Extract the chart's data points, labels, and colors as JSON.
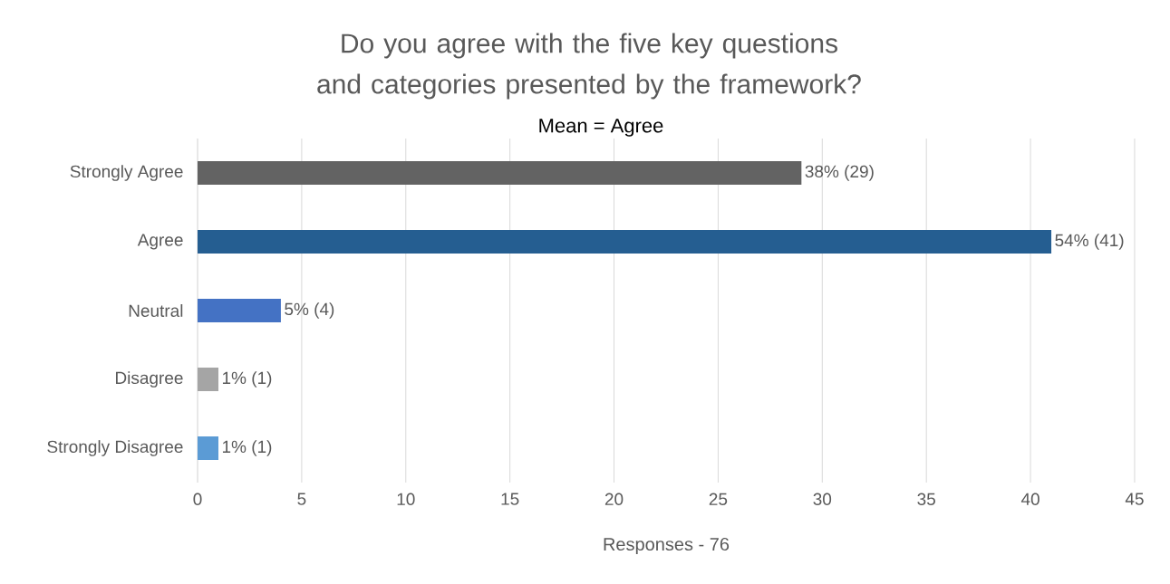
{
  "chart_data": {
    "type": "bar",
    "orientation": "horizontal",
    "title": "Do you agree with the five key questions and categories presented by the framework?",
    "subtitle": "Mean = Agree",
    "xlabel": "Responses - 76",
    "categories": [
      "Strongly Agree",
      "Agree",
      "Neutral",
      "Disagree",
      "Strongly Disagree"
    ],
    "values": [
      29,
      41,
      4,
      1,
      1
    ],
    "colors": [
      "#636363",
      "#255e91",
      "#4472c4",
      "#a5a5a5",
      "#5b9bd5"
    ],
    "value_labels": [
      "38% (29)",
      "54% (41)",
      "5% (4)",
      "1% (1)",
      "1% (1)"
    ],
    "xlim": [
      0,
      45
    ],
    "xticks": [
      0,
      5,
      10,
      15,
      20,
      25,
      30,
      35,
      40,
      45
    ],
    "grid": "x"
  }
}
